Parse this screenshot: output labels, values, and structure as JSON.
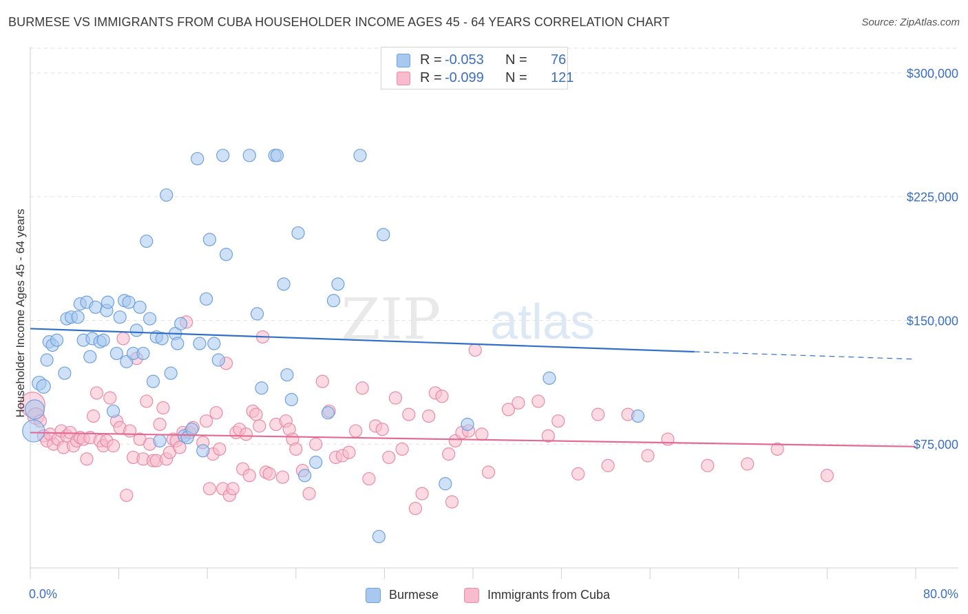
{
  "title": "BURMESE VS IMMIGRANTS FROM CUBA HOUSEHOLDER INCOME AGES 45 - 64 YEARS CORRELATION CHART",
  "source": "Source: ZipAtlas.com",
  "watermark": {
    "part1": "ZIP",
    "part2": "atlas"
  },
  "legend_top": {
    "rows": [
      {
        "r_label": "R =",
        "r_value": "-0.053",
        "n_label": "N =",
        "n_value": "76",
        "color": "#a8c8f0",
        "border": "#6fa0dc"
      },
      {
        "r_label": "R =",
        "r_value": "-0.099",
        "n_label": "N =",
        "n_value": "121",
        "color": "#f8bccd",
        "border": "#e98aa6"
      }
    ]
  },
  "legend_bottom": [
    {
      "label": "Burmese",
      "color": "#a8c8f0",
      "border": "#6fa0dc"
    },
    {
      "label": "Immigrants from Cuba",
      "color": "#f8bccd",
      "border": "#e98aa6"
    }
  ],
  "chart_data": {
    "type": "scatter",
    "title": "BURMESE VS IMMIGRANTS FROM CUBA HOUSEHOLDER INCOME AGES 45 - 64 YEARS CORRELATION CHART",
    "xlabel": "",
    "ylabel": "Householder Income Ages 45 - 64 years",
    "xlim": [
      0,
      80
    ],
    "ylim": [
      0,
      315000
    ],
    "x_tick_labels": [
      "0.0%",
      "80.0%"
    ],
    "y_ticks": [
      75000,
      150000,
      225000,
      300000
    ],
    "y_tick_labels": [
      "$75,000",
      "$150,000",
      "$225,000",
      "$300,000"
    ],
    "grid": "horizontal dashed",
    "legend_placement": "top-center",
    "series": [
      {
        "name": "Burmese",
        "color": "#a8c8f0",
        "stroke": "#6fa0dc",
        "line_color": "#2f6fc8",
        "trend": {
          "x": [
            0,
            60,
            80
          ],
          "y": [
            145000,
            131000,
            126500
          ],
          "solid_until": 60
        },
        "points": [
          [
            0.3,
            83000,
            16
          ],
          [
            0.4,
            96000,
            14
          ],
          [
            0.8,
            112000,
            10
          ],
          [
            1.2,
            110000,
            10
          ],
          [
            1.5,
            126000,
            9
          ],
          [
            1.7,
            137000,
            9
          ],
          [
            2.0,
            135000,
            9
          ],
          [
            2.4,
            138000,
            9
          ],
          [
            3.1,
            118000,
            9
          ],
          [
            3.3,
            151000,
            9
          ],
          [
            3.7,
            152000,
            9
          ],
          [
            4.3,
            152000,
            9
          ],
          [
            4.5,
            160000,
            9
          ],
          [
            4.8,
            138000,
            9
          ],
          [
            5.1,
            161000,
            9
          ],
          [
            5.4,
            128000,
            9
          ],
          [
            5.6,
            139000,
            9
          ],
          [
            5.9,
            158000,
            9
          ],
          [
            6.3,
            137000,
            9
          ],
          [
            6.6,
            138000,
            9
          ],
          [
            6.9,
            156000,
            9
          ],
          [
            7.0,
            161000,
            9
          ],
          [
            7.5,
            95000,
            9
          ],
          [
            7.8,
            130000,
            9
          ],
          [
            8.1,
            152000,
            9
          ],
          [
            8.5,
            162000,
            9
          ],
          [
            8.7,
            125000,
            9
          ],
          [
            8.9,
            161000,
            9
          ],
          [
            9.3,
            130000,
            9
          ],
          [
            9.6,
            144000,
            9
          ],
          [
            9.9,
            158000,
            9
          ],
          [
            10.2,
            130000,
            9
          ],
          [
            10.5,
            198000,
            9
          ],
          [
            10.8,
            151000,
            9
          ],
          [
            11.1,
            113000,
            9
          ],
          [
            11.4,
            140000,
            9
          ],
          [
            11.7,
            77000,
            9
          ],
          [
            11.9,
            139000,
            9
          ],
          [
            12.3,
            226000,
            9
          ],
          [
            12.7,
            118000,
            9
          ],
          [
            13.1,
            142000,
            9
          ],
          [
            13.3,
            136000,
            9
          ],
          [
            13.6,
            148000,
            9
          ],
          [
            13.9,
            80000,
            9
          ],
          [
            14.2,
            79000,
            9
          ],
          [
            14.6,
            84000,
            9
          ],
          [
            15.1,
            248000,
            9
          ],
          [
            15.3,
            136000,
            9
          ],
          [
            15.6,
            71000,
            9
          ],
          [
            15.9,
            163000,
            9
          ],
          [
            16.2,
            199000,
            9
          ],
          [
            16.6,
            136000,
            9
          ],
          [
            17.0,
            126000,
            9
          ],
          [
            17.4,
            250000,
            9
          ],
          [
            17.7,
            190000,
            9
          ],
          [
            19.8,
            250000,
            9
          ],
          [
            20.5,
            154000,
            9
          ],
          [
            20.9,
            109000,
            9
          ],
          [
            22.1,
            250000,
            9
          ],
          [
            22.3,
            250000,
            9
          ],
          [
            22.9,
            172000,
            9
          ],
          [
            23.2,
            117000,
            9
          ],
          [
            23.6,
            102000,
            9
          ],
          [
            24.2,
            203000,
            9
          ],
          [
            24.8,
            56000,
            9
          ],
          [
            25.8,
            64000,
            9
          ],
          [
            26.9,
            94000,
            9
          ],
          [
            27.4,
            162000,
            9
          ],
          [
            27.8,
            172000,
            9
          ],
          [
            29.8,
            250000,
            9
          ],
          [
            31.5,
            19000,
            9
          ],
          [
            31.9,
            202000,
            9
          ],
          [
            37.5,
            51000,
            9
          ],
          [
            39.5,
            87000,
            9
          ],
          [
            46.9,
            115000,
            9
          ],
          [
            54.9,
            92000,
            9
          ]
        ]
      },
      {
        "name": "Immigrants from Cuba",
        "color": "#f8bccd",
        "stroke": "#e98aa6",
        "line_color": "#e26a93",
        "trend": {
          "x": [
            0,
            80
          ],
          "y": [
            82000,
            73500
          ],
          "solid_until": 80
        },
        "points": [
          [
            0.2,
            99000,
            18
          ],
          [
            0.5,
            92000,
            12
          ],
          [
            0.9,
            89000,
            9
          ],
          [
            1.2,
            80000,
            9
          ],
          [
            1.5,
            77000,
            9
          ],
          [
            1.8,
            81000,
            9
          ],
          [
            2.1,
            75000,
            9
          ],
          [
            2.5,
            78000,
            9
          ],
          [
            2.8,
            83000,
            9
          ],
          [
            3.0,
            73000,
            9
          ],
          [
            3.3,
            80000,
            9
          ],
          [
            3.6,
            82000,
            9
          ],
          [
            3.9,
            74000,
            9
          ],
          [
            4.2,
            77000,
            9
          ],
          [
            4.5,
            79000,
            9
          ],
          [
            4.8,
            78000,
            9
          ],
          [
            5.1,
            66000,
            9
          ],
          [
            5.4,
            79000,
            9
          ],
          [
            5.7,
            92000,
            9
          ],
          [
            6.0,
            106000,
            9
          ],
          [
            6.3,
            77000,
            9
          ],
          [
            6.6,
            74000,
            9
          ],
          [
            6.9,
            77000,
            9
          ],
          [
            7.2,
            103000,
            9
          ],
          [
            7.5,
            74000,
            9
          ],
          [
            7.8,
            89000,
            9
          ],
          [
            8.1,
            85000,
            9
          ],
          [
            8.4,
            139000,
            9
          ],
          [
            8.7,
            44000,
            9
          ],
          [
            9.0,
            83000,
            9
          ],
          [
            9.3,
            67000,
            9
          ],
          [
            9.6,
            127000,
            9
          ],
          [
            9.9,
            78000,
            9
          ],
          [
            10.2,
            66000,
            9
          ],
          [
            10.5,
            101000,
            9
          ],
          [
            10.8,
            75000,
            9
          ],
          [
            11.1,
            65000,
            9
          ],
          [
            11.4,
            65000,
            9
          ],
          [
            11.7,
            87000,
            9
          ],
          [
            12.0,
            97000,
            9
          ],
          [
            12.3,
            66000,
            9
          ],
          [
            12.6,
            70000,
            9
          ],
          [
            12.9,
            78000,
            9
          ],
          [
            13.2,
            77000,
            9
          ],
          [
            13.5,
            73000,
            9
          ],
          [
            13.8,
            82000,
            9
          ],
          [
            14.1,
            149000,
            9
          ],
          [
            14.4,
            82000,
            9
          ],
          [
            14.7,
            85000,
            9
          ],
          [
            15.6,
            76000,
            9
          ],
          [
            15.9,
            89000,
            9
          ],
          [
            16.2,
            48000,
            9
          ],
          [
            16.5,
            69000,
            9
          ],
          [
            16.8,
            94000,
            9
          ],
          [
            17.1,
            72000,
            9
          ],
          [
            17.4,
            48000,
            9
          ],
          [
            17.7,
            124000,
            9
          ],
          [
            18.0,
            44000,
            9
          ],
          [
            18.3,
            48000,
            9
          ],
          [
            18.6,
            82000,
            9
          ],
          [
            18.9,
            84000,
            9
          ],
          [
            19.2,
            60000,
            9
          ],
          [
            19.5,
            81000,
            9
          ],
          [
            19.8,
            56000,
            9
          ],
          [
            20.1,
            95000,
            9
          ],
          [
            20.4,
            93000,
            9
          ],
          [
            20.7,
            86000,
            9
          ],
          [
            21.0,
            140000,
            9
          ],
          [
            21.3,
            58000,
            9
          ],
          [
            21.6,
            57000,
            9
          ],
          [
            22.2,
            87000,
            9
          ],
          [
            22.8,
            55000,
            9
          ],
          [
            23.1,
            89000,
            9
          ],
          [
            23.4,
            84000,
            9
          ],
          [
            23.7,
            78000,
            9
          ],
          [
            24.0,
            72000,
            9
          ],
          [
            24.6,
            59000,
            9
          ],
          [
            25.2,
            45000,
            9
          ],
          [
            25.8,
            75000,
            9
          ],
          [
            26.4,
            113000,
            9
          ],
          [
            27.0,
            95000,
            9
          ],
          [
            27.6,
            67000,
            9
          ],
          [
            28.2,
            68000,
            9
          ],
          [
            28.8,
            70000,
            9
          ],
          [
            29.4,
            83000,
            9
          ],
          [
            30.0,
            109000,
            9
          ],
          [
            30.6,
            54000,
            9
          ],
          [
            31.2,
            86000,
            9
          ],
          [
            31.8,
            84000,
            9
          ],
          [
            32.4,
            67000,
            9
          ],
          [
            33.0,
            103000,
            9
          ],
          [
            33.6,
            72000,
            9
          ],
          [
            34.2,
            93000,
            9
          ],
          [
            34.8,
            36000,
            9
          ],
          [
            35.4,
            45000,
            9
          ],
          [
            36.0,
            92000,
            9
          ],
          [
            36.6,
            106000,
            9
          ],
          [
            37.2,
            104000,
            9
          ],
          [
            37.8,
            69000,
            9
          ],
          [
            38.1,
            40000,
            9
          ],
          [
            38.4,
            77000,
            9
          ],
          [
            39.0,
            82000,
            9
          ],
          [
            39.6,
            83000,
            9
          ],
          [
            40.2,
            132000,
            9
          ],
          [
            40.8,
            81000,
            9
          ],
          [
            41.4,
            58000,
            9
          ],
          [
            43.2,
            96000,
            9
          ],
          [
            44.1,
            100000,
            9
          ],
          [
            45.9,
            101000,
            9
          ],
          [
            46.8,
            80000,
            9
          ],
          [
            47.7,
            89000,
            9
          ],
          [
            49.5,
            57000,
            9
          ],
          [
            51.3,
            93000,
            9
          ],
          [
            52.2,
            62000,
            9
          ],
          [
            54.0,
            93000,
            9
          ],
          [
            55.8,
            68000,
            9
          ],
          [
            57.6,
            78000,
            9
          ],
          [
            61.2,
            62000,
            9
          ],
          [
            64.8,
            63000,
            9
          ],
          [
            67.5,
            72000,
            9
          ],
          [
            72.0,
            56000,
            9
          ]
        ]
      }
    ]
  }
}
